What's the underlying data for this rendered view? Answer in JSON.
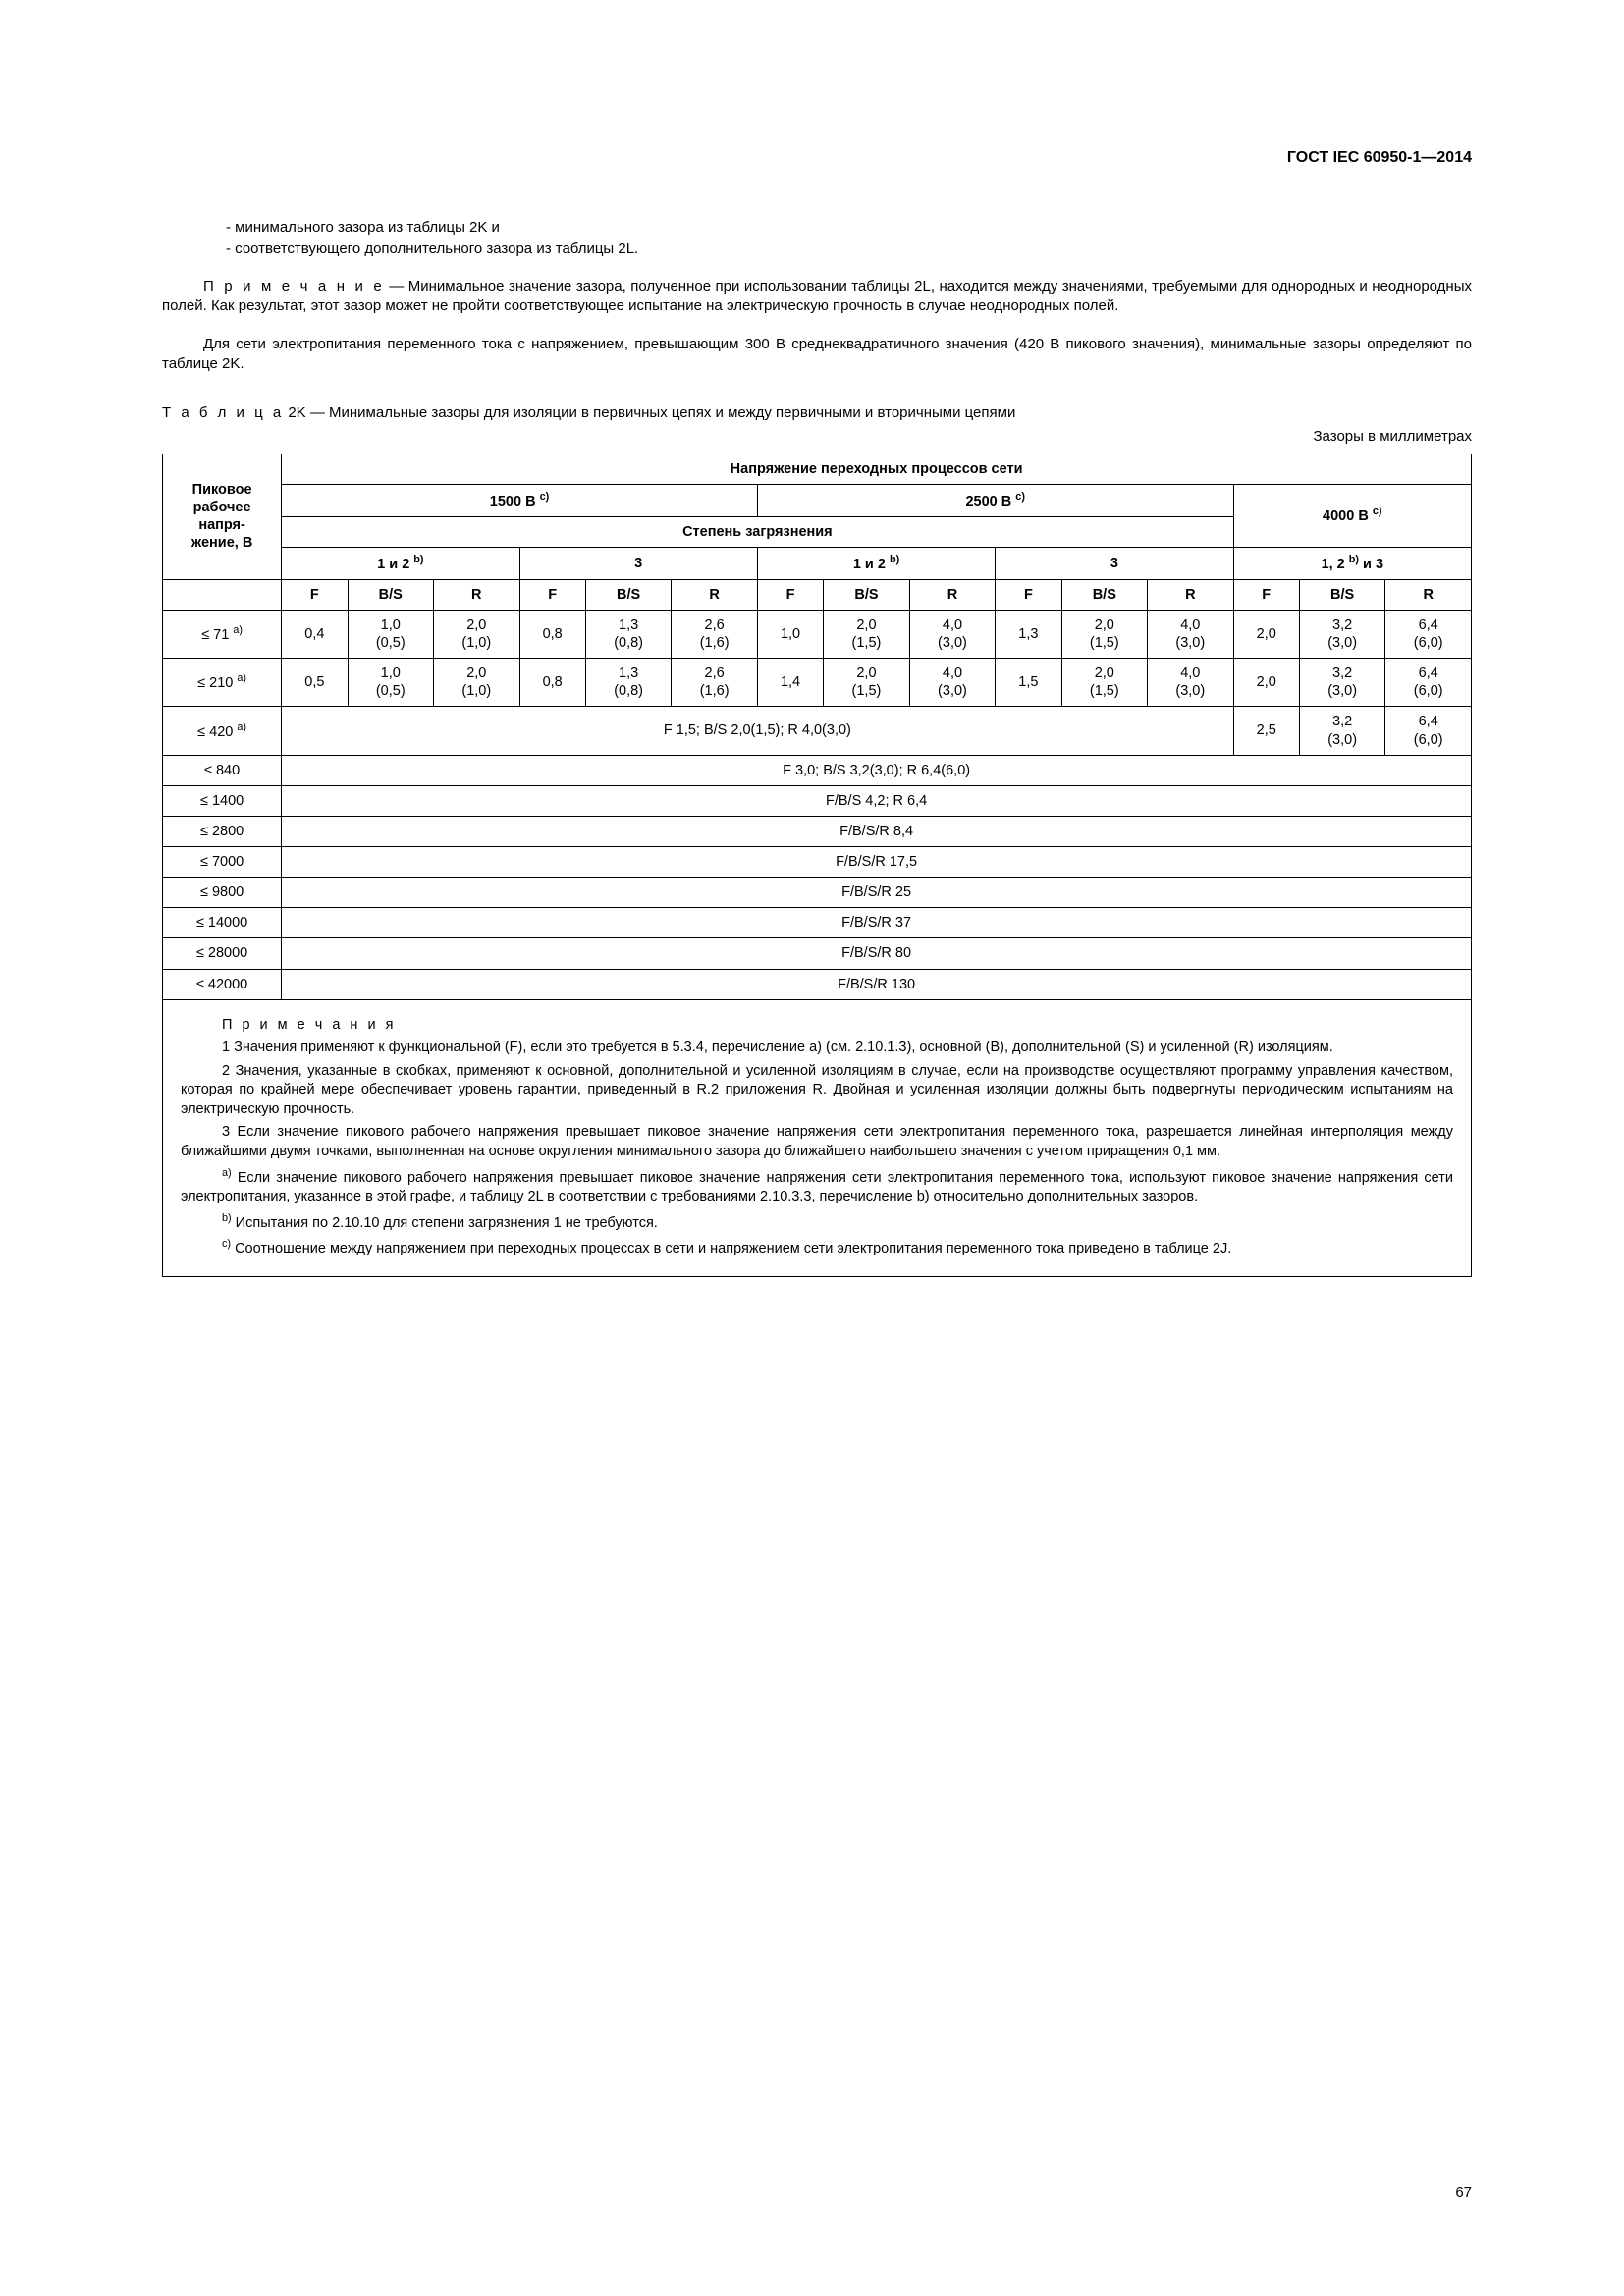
{
  "doc": {
    "id": "ГОСТ IEC 60950-1—2014",
    "page": "67"
  },
  "bullets": {
    "b1": "-  минимального зазора из таблицы 2K и",
    "b2": "-  соответствующего дополнительного зазора из таблицы 2L."
  },
  "note1": {
    "label": "П р и м е ч а н и е",
    "sep": " — ",
    "text": "Минимальное значение зазора, полученное при использовании таблицы 2L, находится между значениями, требуемыми для однородных и неоднородных полей. Как результат, этот зазор может не пройти соответствующее испытание на электрическую прочность в случае неоднородных полей."
  },
  "para2": "Для сети электропитания переменного тока с напряжением, превышающим 300 В среднеквадратичного значения (420 В пикового значения), минимальные зазоры определяют по таблице 2K.",
  "tableTitle": {
    "label": "Т а б л и ц а",
    "rest": " 2K — Минимальные зазоры для изоляции в первичных цепях и между первичными и вторичными цепями"
  },
  "units": "Зазоры в миллиметрах",
  "hdr": {
    "rowLabel1": "Пиковое",
    "rowLabel2": "рабочее",
    "rowLabel3": "напря-",
    "rowLabel4": "жение, В",
    "top": "Напряжение переходных процессов сети",
    "vhead": {
      "v1500": "1500 В ",
      "v2500": "2500 В ",
      "v4000": "4000 В ",
      "sup": "c)"
    },
    "pollution": "Степень загрязнения",
    "p12": "1 и 2 ",
    "p12sup": "b)",
    "p3": "3",
    "p123": "1, 2 ",
    "p123sup": "b)",
    "p123tail": " и 3",
    "F": "F",
    "BS": "B/S",
    "R": "R"
  },
  "rows": {
    "r1h": "≤ 71 ",
    "r1s": "a)",
    "r1": [
      "0,4",
      "1,0\n(0,5)",
      "2,0\n(1,0)",
      "0,8",
      "1,3\n(0,8)",
      "2,6\n(1,6)",
      "1,0",
      "2,0\n(1,5)",
      "4,0\n(3,0)",
      "1,3",
      "2,0\n(1,5)",
      "4,0\n(3,0)",
      "2,0",
      "3,2\n(3,0)",
      "6,4\n(6,0)"
    ],
    "r2h": "≤ 210 ",
    "r2s": "a)",
    "r2": [
      "0,5",
      "1,0\n(0,5)",
      "2,0\n(1,0)",
      "0,8",
      "1,3\n(0,8)",
      "2,6\n(1,6)",
      "1,4",
      "2,0\n(1,5)",
      "4,0\n(3,0)",
      "1,5",
      "2,0\n(1,5)",
      "4,0\n(3,0)",
      "2,0",
      "3,2\n(3,0)",
      "6,4\n(6,0)"
    ],
    "r3h": "≤ 420 ",
    "r3s": "a)",
    "r3m": "F 1,5; B/S 2,0(1,5); R 4,0(3,0)",
    "r3t": [
      "2,5",
      "3,2\n(3,0)",
      "6,4\n(6,0)"
    ],
    "r4h": "≤ 840",
    "r4m": "F 3,0; B/S 3,2(3,0); R 6,4(6,0)",
    "r5h": "≤ 1400",
    "r5m": "F/B/S 4,2; R 6,4",
    "r6h": "≤ 2800",
    "r6m": "F/B/S/R 8,4",
    "r7h": "≤ 7000",
    "r7m": "F/B/S/R 17,5",
    "r8h": "≤ 9800",
    "r8m": "F/B/S/R 25",
    "r9h": "≤ 14000",
    "r9m": "F/B/S/R 37",
    "r10h": "≤ 28000",
    "r10m": "F/B/S/R 80",
    "r11h": "≤ 42000",
    "r11m": "F/B/S/R 130"
  },
  "notes": {
    "title": "П р и м е ч а н и я",
    "n1": "1 Значения применяют к функциональной (F), если это требуется в 5.3.4, перечисление a) (см. 2.10.1.3), основной (B), дополнительной (S) и усиленной (R) изоляциям.",
    "n2": "2 Значения, указанные в скобках, применяют к основной, дополнительной и усиленной изоляциям в случае, если на производстве осуществляют программу управления качеством, которая по крайней мере обеспечивает уровень гарантии, приведенный в R.2 приложения R. Двойная и усиленная изоляции должны быть подвергнуты периодическим испытаниям на электрическую прочность.",
    "n3": "3 Если значение пикового рабочего напряжения превышает пиковое значение напряжения сети электропитания переменного тока, разрешается линейная интерполяция между ближайшими двумя точками, выполненная на основе округления минимального зазора до ближайшего наибольшего значения с учетом приращения 0,1 мм.",
    "na_s": "a)",
    "na": " Если значение пикового рабочего напряжения превышает пиковое значение напряжения сети электропитания переменного тока, используют пиковое значение напряжения сети электропитания, указанное в этой графе, и таблицу 2L в соответствии с требованиями 2.10.3.3, перечисление b) относительно дополнительных зазоров.",
    "nb_s": "b)",
    "nb": " Испытания по 2.10.10 для степени загрязнения 1 не требуются.",
    "nc_s": "c)",
    "nc": " Соотношение между напряжением при переходных процессах в сети и напряжением сети электропитания переменного тока приведено в таблице 2J."
  }
}
